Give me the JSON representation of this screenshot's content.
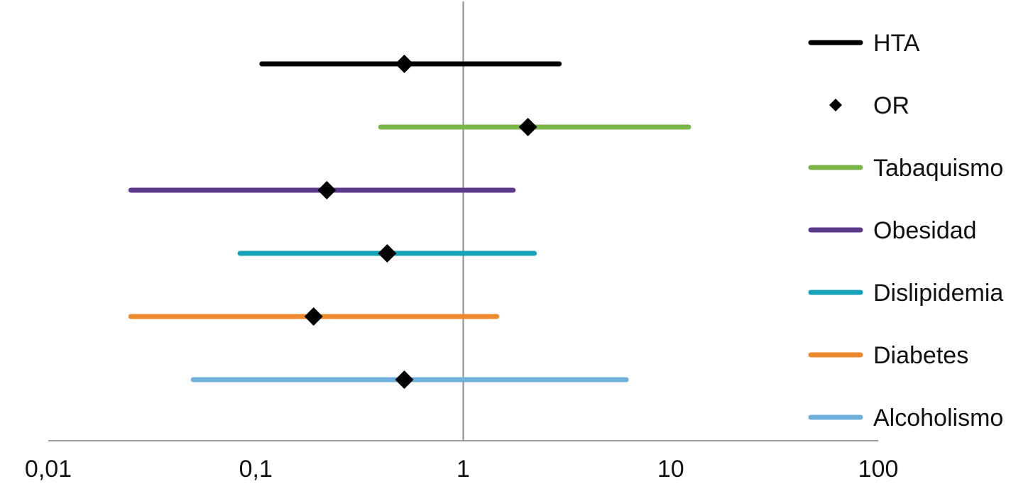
{
  "chart_data": {
    "type": "forest",
    "title": "",
    "xlabel": "",
    "ylabel": "",
    "x_scale": "log",
    "xlim": [
      0.01,
      100
    ],
    "x_ticks": [
      0.01,
      0.1,
      1,
      10,
      100
    ],
    "x_tick_labels": [
      "0,01",
      "0,1",
      "1",
      "10",
      "100"
    ],
    "reference_line": 1,
    "grid": false,
    "legend_position": "right",
    "point_marker_label": "OR",
    "series": [
      {
        "name": "HTA",
        "color": "#000000",
        "or": 0.52,
        "ci_low": 0.107,
        "ci_high": 2.9
      },
      {
        "name": "Tabaquismo",
        "color": "#7ab648",
        "or": 2.05,
        "ci_low": 0.4,
        "ci_high": 12.2
      },
      {
        "name": "Obesidad",
        "color": "#5b3a8c",
        "or": 0.22,
        "ci_low": 0.025,
        "ci_high": 1.74
      },
      {
        "name": "Dislipidemia",
        "color": "#14a3b8",
        "or": 0.43,
        "ci_low": 0.084,
        "ci_high": 2.2
      },
      {
        "name": "Diabetes",
        "color": "#ee8a2e",
        "or": 0.19,
        "ci_low": 0.025,
        "ci_high": 1.45
      },
      {
        "name": "Alcoholismo",
        "color": "#6fb1db",
        "or": 0.52,
        "ci_low": 0.05,
        "ci_high": 6.1
      }
    ]
  }
}
